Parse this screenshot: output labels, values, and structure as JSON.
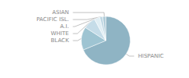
{
  "chart_data": {
    "type": "pie",
    "categories": [
      "HISPANIC",
      "BLACK",
      "WHITE",
      "A.I.",
      "PACIFIC ISL.",
      "ASIAN"
    ],
    "values": [
      67,
      15,
      8,
      3.5,
      2,
      2
    ],
    "colors": [
      "#8fb4c4",
      "#9ec4d2",
      "#c5dce8",
      "#e0eef4",
      "#c0d8e4",
      "#b0ccd8"
    ]
  }
}
